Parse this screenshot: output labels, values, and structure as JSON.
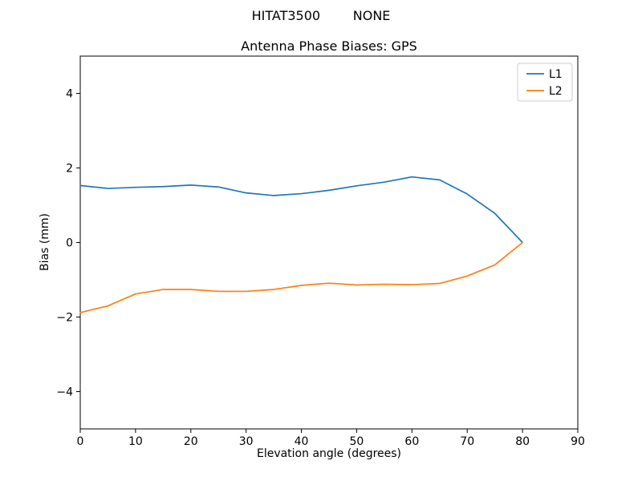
{
  "suptitle": "HITAT3500        NONE",
  "chart_data": {
    "type": "line",
    "title": "Antenna Phase Biases: GPS",
    "xlabel": "Elevation angle (degrees)",
    "ylabel": "Bias (mm)",
    "xlim": [
      0,
      90
    ],
    "ylim": [
      -5,
      5
    ],
    "xticks": [
      0,
      10,
      20,
      30,
      40,
      50,
      60,
      70,
      80,
      90
    ],
    "yticks": [
      -4,
      -2,
      0,
      2,
      4
    ],
    "grid": false,
    "legend_position": "upper right",
    "x": [
      0,
      5,
      10,
      15,
      20,
      25,
      30,
      35,
      40,
      45,
      50,
      55,
      60,
      65,
      70,
      75,
      80
    ],
    "series": [
      {
        "name": "L1",
        "color": "#1f77b4",
        "values": [
          1.53,
          1.45,
          1.48,
          1.5,
          1.54,
          1.49,
          1.33,
          1.26,
          1.31,
          1.4,
          1.52,
          1.62,
          1.76,
          1.68,
          1.3,
          0.78,
          0.0
        ]
      },
      {
        "name": "L2",
        "color": "#ff7f0e",
        "values": [
          -1.88,
          -1.7,
          -1.38,
          -1.26,
          -1.26,
          -1.31,
          -1.31,
          -1.26,
          -1.15,
          -1.09,
          -1.14,
          -1.12,
          -1.13,
          -1.1,
          -0.9,
          -0.6,
          0.0
        ]
      }
    ]
  }
}
